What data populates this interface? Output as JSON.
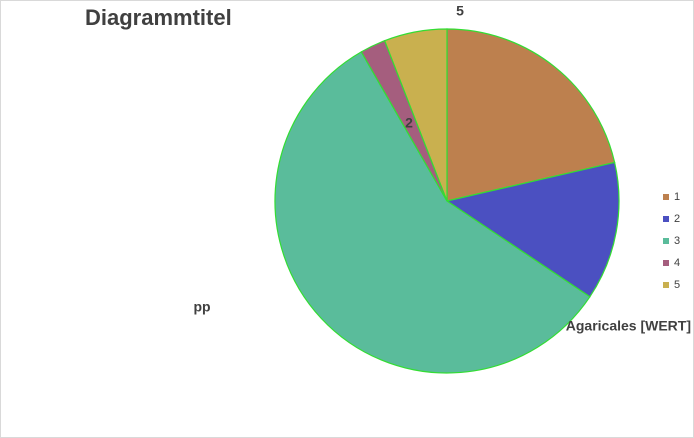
{
  "chart_data": {
    "type": "pie",
    "title": "Diagrammtitel",
    "categories": [
      "1",
      "2",
      "3",
      "4",
      "5"
    ],
    "values": [
      21.4,
      13,
      57.3,
      2.4,
      5.9
    ],
    "colors": [
      "#bd804e",
      "#4b50c1",
      "#5abc9b",
      "#a55e7e",
      "#c9b04f"
    ],
    "legend": "right",
    "annotations": [
      "5",
      "2",
      "pp",
      "Agaricales  [WERT]"
    ]
  }
}
